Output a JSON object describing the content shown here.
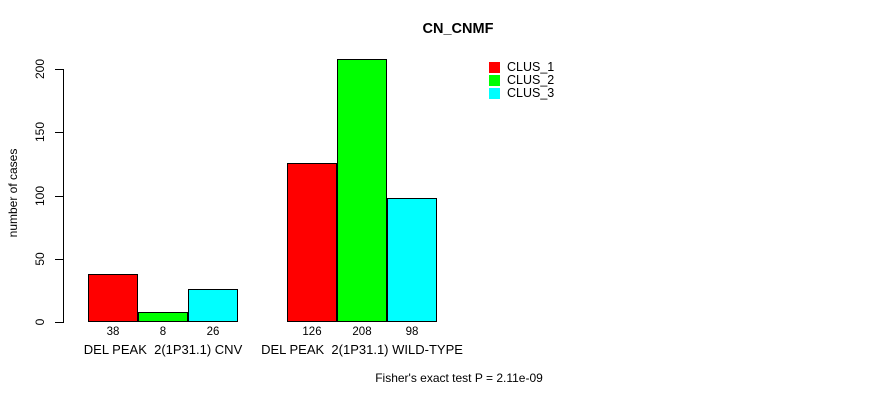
{
  "chart_data": {
    "type": "bar",
    "title": "CN_CNMF",
    "xlabel": "",
    "ylabel": "number of cases",
    "ylim": [
      0,
      200
    ],
    "yticks": [
      0,
      50,
      100,
      150,
      200
    ],
    "grid": false,
    "legend_position": "top-right",
    "show_bar_values": true,
    "categories": [
      "DEL PEAK  2(1P31.1) CNV",
      "DEL PEAK  2(1P31.1) WILD-TYPE"
    ],
    "series": [
      {
        "name": "CLUS_1",
        "color": "#ff0000",
        "values": [
          38,
          126
        ]
      },
      {
        "name": "CLUS_2",
        "color": "#00ff00",
        "values": [
          8,
          208
        ]
      },
      {
        "name": "CLUS_3",
        "color": "#00ffff",
        "values": [
          26,
          98
        ]
      }
    ],
    "annotation": "Fisher's exact test P = 2.11e-09"
  }
}
